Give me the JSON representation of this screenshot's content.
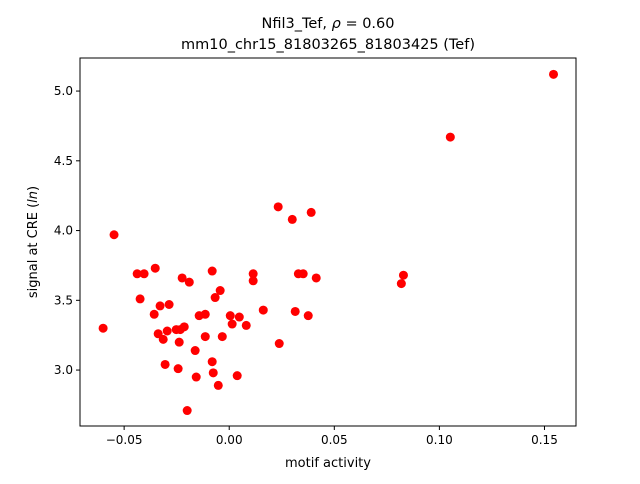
{
  "chart_data": {
    "type": "scatter",
    "title_line1_prefix": "Nfil3_Tef, ",
    "title_rho_symbol": "ρ",
    "title_rho_value": " = 0.60",
    "title_line2": "mm10_chr15_81803265_81803425 (Tef)",
    "xlabel": "motif activity",
    "ylabel_prefix": "signal at CRE (",
    "ylabel_italic": "ln",
    "ylabel_suffix": ")",
    "xlim": [
      -0.071,
      0.165
    ],
    "ylim": [
      2.599,
      5.237
    ],
    "xticks": [
      -0.05,
      0.0,
      0.05,
      0.1,
      0.15
    ],
    "xtick_labels": [
      "−0.05",
      "0.00",
      "0.05",
      "0.10",
      "0.15"
    ],
    "yticks": [
      3.0,
      3.5,
      4.0,
      4.5,
      5.0
    ],
    "ytick_labels": [
      "3.0",
      "3.5",
      "4.0",
      "4.5",
      "5.0"
    ],
    "grid": false,
    "marker_color": "#ff0000",
    "points": [
      [
        -0.06,
        3.3
      ],
      [
        -0.0548,
        3.97
      ],
      [
        -0.0438,
        3.69
      ],
      [
        -0.0424,
        3.51
      ],
      [
        -0.0405,
        3.69
      ],
      [
        -0.0352,
        3.73
      ],
      [
        -0.0357,
        3.4
      ],
      [
        -0.0338,
        3.26
      ],
      [
        -0.0329,
        3.46
      ],
      [
        -0.0314,
        3.22
      ],
      [
        -0.0305,
        3.04
      ],
      [
        -0.0295,
        3.28
      ],
      [
        -0.0286,
        3.47
      ],
      [
        -0.0252,
        3.29
      ],
      [
        -0.0243,
        3.01
      ],
      [
        -0.0238,
        3.2
      ],
      [
        -0.0233,
        3.29
      ],
      [
        -0.0224,
        3.66
      ],
      [
        -0.0214,
        3.31
      ],
      [
        -0.02,
        2.71
      ],
      [
        -0.019,
        3.63
      ],
      [
        -0.0162,
        3.14
      ],
      [
        -0.0157,
        2.95
      ],
      [
        -0.0143,
        3.39
      ],
      [
        -0.0114,
        3.4
      ],
      [
        -0.0114,
        3.24
      ],
      [
        -0.0081,
        3.71
      ],
      [
        -0.0081,
        3.06
      ],
      [
        -0.0076,
        2.98
      ],
      [
        -0.0067,
        3.52
      ],
      [
        -0.0052,
        2.89
      ],
      [
        -0.0043,
        3.57
      ],
      [
        -0.0033,
        3.24
      ],
      [
        0.0005,
        3.39
      ],
      [
        0.0014,
        3.33
      ],
      [
        0.0038,
        2.96
      ],
      [
        0.0048,
        3.38
      ],
      [
        0.0081,
        3.32
      ],
      [
        0.0114,
        3.69
      ],
      [
        0.0114,
        3.64
      ],
      [
        0.0162,
        3.43
      ],
      [
        0.0233,
        4.17
      ],
      [
        0.0238,
        3.19
      ],
      [
        0.03,
        4.08
      ],
      [
        0.0314,
        3.42
      ],
      [
        0.0329,
        3.69
      ],
      [
        0.0352,
        3.69
      ],
      [
        0.0376,
        3.39
      ],
      [
        0.039,
        4.13
      ],
      [
        0.0414,
        3.66
      ],
      [
        0.0819,
        3.62
      ],
      [
        0.0829,
        3.68
      ],
      [
        0.1052,
        4.67
      ],
      [
        0.1543,
        5.12
      ]
    ]
  }
}
